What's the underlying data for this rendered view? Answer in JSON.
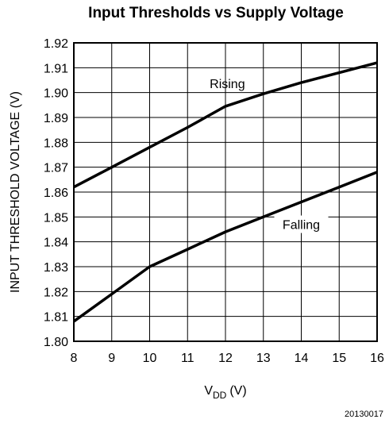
{
  "chart_data": {
    "type": "line",
    "title": "Input Thresholds vs Supply Voltage",
    "xlabel": "V",
    "xlabel_subscript": "DD",
    "xlabel_unit": "(V)",
    "ylabel": "INPUT THRESHOLD VOLTAGE (V)",
    "xlim": [
      8,
      16
    ],
    "ylim": [
      1.8,
      1.92
    ],
    "x_ticks": [
      "8",
      "9",
      "10",
      "11",
      "12",
      "13",
      "14",
      "15",
      "16"
    ],
    "y_ticks": [
      "1.80",
      "1.81",
      "1.82",
      "1.83",
      "1.84",
      "1.85",
      "1.86",
      "1.87",
      "1.88",
      "1.89",
      "1.90",
      "1.91",
      "1.92"
    ],
    "grid": true,
    "series": [
      {
        "name": "Rising",
        "x": [
          8,
          9,
          10,
          11,
          12,
          13,
          14,
          15,
          16
        ],
        "y": [
          1.862,
          1.87,
          1.878,
          1.886,
          1.8945,
          1.8995,
          1.904,
          1.908,
          1.912
        ]
      },
      {
        "name": "Falling",
        "x": [
          8,
          9,
          10,
          11,
          12,
          13,
          14,
          15,
          16
        ],
        "y": [
          1.808,
          1.819,
          1.83,
          1.837,
          1.844,
          1.85,
          1.856,
          1.862,
          1.868
        ]
      }
    ]
  },
  "figure_id": "20130017"
}
